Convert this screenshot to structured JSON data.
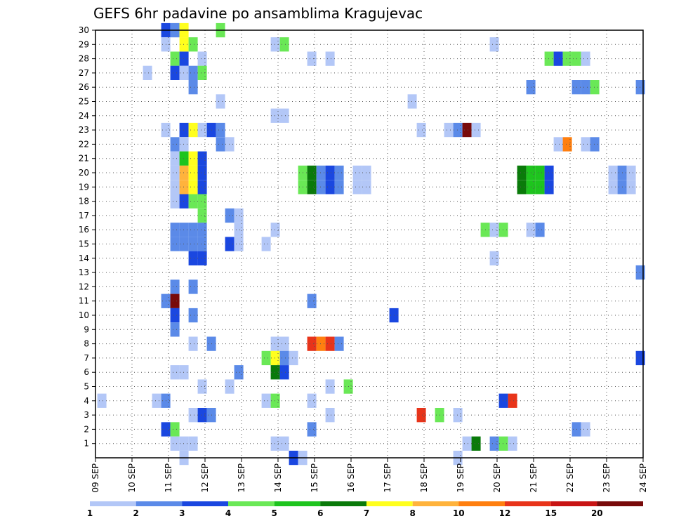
{
  "chart_data": {
    "type": "heatmap",
    "title": "GEFS 6hr padavine po ansamblima Kragujevac",
    "xlabel": "",
    "ylabel": "",
    "x_ticks": [
      "09 SEP",
      "10 SEP",
      "11 SEP",
      "12 SEP",
      "13 SEP",
      "14 SEP",
      "15 SEP",
      "16 SEP",
      "17 SEP",
      "18 SEP",
      "19 SEP",
      "20 SEP",
      "21 SEP",
      "22 SEP",
      "23 SEP",
      "24 SEP"
    ],
    "y_ticks": [
      1,
      2,
      3,
      4,
      5,
      6,
      7,
      8,
      9,
      10,
      11,
      12,
      13,
      14,
      15,
      16,
      17,
      18,
      19,
      20,
      21,
      22,
      23,
      24,
      25,
      26,
      27,
      28,
      29,
      30
    ],
    "xlim": [
      0,
      15
    ],
    "ylim": [
      0,
      30
    ],
    "grid": true,
    "colorbar": {
      "labels": [
        "1",
        "2",
        "3",
        "4",
        "5",
        "6",
        "7",
        "8",
        "10",
        "12",
        "15",
        "20"
      ],
      "colors": [
        "#b3c7f7",
        "#5b8ae8",
        "#1a47e0",
        "#6ae856",
        "#1ec41e",
        "#0a7a0a",
        "#ffff1e",
        "#ffb33c",
        "#ff7f0f",
        "#e8341a",
        "#c81414",
        "#780a0a"
      ]
    },
    "cells_note": "each cell: [member, time_start_days, time_end_days, color_class 1..12]",
    "cells": [
      [
        30,
        1.8,
        2.05,
        3
      ],
      [
        30,
        2.05,
        2.3,
        2
      ],
      [
        30,
        2.3,
        2.55,
        7
      ],
      [
        30,
        3.3,
        3.55,
        4
      ],
      [
        29,
        1.8,
        2.05,
        1
      ],
      [
        29,
        2.3,
        2.55,
        7
      ],
      [
        29,
        2.55,
        2.8,
        4
      ],
      [
        29,
        4.8,
        5.05,
        1
      ],
      [
        29,
        5.05,
        5.3,
        4
      ],
      [
        29,
        10.8,
        11.05,
        1
      ],
      [
        28,
        2.05,
        2.3,
        4
      ],
      [
        28,
        2.3,
        2.55,
        3
      ],
      [
        28,
        2.8,
        3.05,
        1
      ],
      [
        28,
        5.8,
        6.05,
        1
      ],
      [
        28,
        6.3,
        6.55,
        1
      ],
      [
        28,
        12.3,
        12.55,
        4
      ],
      [
        28,
        12.55,
        12.8,
        3
      ],
      [
        28,
        12.8,
        13.05,
        4
      ],
      [
        28,
        13.05,
        13.3,
        4
      ],
      [
        28,
        13.3,
        13.55,
        1
      ],
      [
        27,
        1.3,
        1.55,
        1
      ],
      [
        27,
        2.05,
        2.3,
        3
      ],
      [
        27,
        2.3,
        2.55,
        1
      ],
      [
        27,
        2.55,
        2.8,
        2
      ],
      [
        27,
        2.8,
        3.05,
        4
      ],
      [
        26,
        2.55,
        2.8,
        2
      ],
      [
        26,
        11.8,
        12.05,
        2
      ],
      [
        26,
        13.05,
        13.3,
        2
      ],
      [
        26,
        13.3,
        13.55,
        2
      ],
      [
        26,
        13.55,
        13.8,
        4
      ],
      [
        26,
        14.8,
        15.05,
        2
      ],
      [
        25,
        3.3,
        3.55,
        1
      ],
      [
        25,
        8.55,
        8.8,
        1
      ],
      [
        24,
        4.8,
        5.05,
        1
      ],
      [
        24,
        5.05,
        5.3,
        1
      ],
      [
        23,
        1.8,
        2.05,
        1
      ],
      [
        23,
        2.3,
        2.55,
        3
      ],
      [
        23,
        2.55,
        2.8,
        7
      ],
      [
        23,
        2.8,
        3.05,
        1
      ],
      [
        23,
        3.05,
        3.3,
        3
      ],
      [
        23,
        3.3,
        3.55,
        2
      ],
      [
        23,
        8.8,
        9.05,
        1
      ],
      [
        23,
        9.55,
        9.8,
        1
      ],
      [
        23,
        9.8,
        10.05,
        2
      ],
      [
        23,
        10.05,
        10.3,
        12
      ],
      [
        23,
        10.3,
        10.55,
        1
      ],
      [
        22,
        2.05,
        2.3,
        2
      ],
      [
        22,
        2.3,
        2.55,
        1
      ],
      [
        22,
        3.3,
        3.55,
        2
      ],
      [
        22,
        3.55,
        3.8,
        1
      ],
      [
        22,
        12.55,
        12.8,
        1
      ],
      [
        22,
        12.8,
        13.05,
        9
      ],
      [
        22,
        13.3,
        13.55,
        1
      ],
      [
        22,
        13.55,
        13.8,
        2
      ],
      [
        21,
        2.05,
        2.3,
        1
      ],
      [
        21,
        2.3,
        2.55,
        5
      ],
      [
        21,
        2.55,
        2.8,
        7
      ],
      [
        21,
        2.8,
        3.05,
        3
      ],
      [
        20,
        2.05,
        2.3,
        1
      ],
      [
        20,
        2.3,
        2.55,
        8
      ],
      [
        20,
        2.55,
        2.8,
        7
      ],
      [
        20,
        2.8,
        3.05,
        3
      ],
      [
        20,
        5.55,
        5.8,
        4
      ],
      [
        20,
        5.8,
        6.05,
        6
      ],
      [
        20,
        6.05,
        6.3,
        2
      ],
      [
        20,
        6.3,
        6.55,
        3
      ],
      [
        20,
        6.55,
        6.8,
        2
      ],
      [
        20,
        7.05,
        7.3,
        1
      ],
      [
        20,
        7.3,
        7.55,
        1
      ],
      [
        20,
        11.55,
        11.8,
        6
      ],
      [
        20,
        11.8,
        12.05,
        5
      ],
      [
        20,
        12.05,
        12.3,
        5
      ],
      [
        20,
        12.3,
        12.55,
        3
      ],
      [
        20,
        14.05,
        14.3,
        1
      ],
      [
        20,
        14.3,
        14.55,
        2
      ],
      [
        20,
        14.55,
        14.8,
        1
      ],
      [
        19,
        2.05,
        2.3,
        1
      ],
      [
        19,
        2.3,
        2.55,
        8
      ],
      [
        19,
        2.55,
        2.8,
        7
      ],
      [
        19,
        2.8,
        3.05,
        3
      ],
      [
        19,
        5.55,
        5.8,
        4
      ],
      [
        19,
        5.8,
        6.05,
        6
      ],
      [
        19,
        6.05,
        6.3,
        2
      ],
      [
        19,
        6.3,
        6.55,
        3
      ],
      [
        19,
        6.55,
        6.8,
        2
      ],
      [
        19,
        7.05,
        7.3,
        1
      ],
      [
        19,
        7.3,
        7.55,
        1
      ],
      [
        19,
        11.55,
        11.8,
        6
      ],
      [
        19,
        11.8,
        12.05,
        5
      ],
      [
        19,
        12.05,
        12.3,
        5
      ],
      [
        19,
        12.3,
        12.55,
        3
      ],
      [
        19,
        14.05,
        14.3,
        1
      ],
      [
        19,
        14.3,
        14.55,
        2
      ],
      [
        19,
        14.55,
        14.8,
        1
      ],
      [
        18,
        2.05,
        2.3,
        1
      ],
      [
        18,
        2.3,
        2.55,
        3
      ],
      [
        18,
        2.55,
        2.8,
        4
      ],
      [
        18,
        2.8,
        3.05,
        4
      ],
      [
        17,
        2.8,
        3.05,
        4
      ],
      [
        17,
        3.55,
        3.8,
        2
      ],
      [
        17,
        3.8,
        4.05,
        1
      ],
      [
        16,
        2.05,
        2.3,
        2
      ],
      [
        16,
        2.3,
        2.55,
        2
      ],
      [
        16,
        2.55,
        2.8,
        2
      ],
      [
        16,
        2.8,
        3.05,
        2
      ],
      [
        16,
        3.8,
        4.05,
        1
      ],
      [
        16,
        4.8,
        5.05,
        1
      ],
      [
        16,
        10.55,
        10.8,
        4
      ],
      [
        16,
        10.8,
        11.05,
        1
      ],
      [
        16,
        11.05,
        11.3,
        4
      ],
      [
        16,
        11.8,
        12.05,
        1
      ],
      [
        16,
        12.05,
        12.3,
        2
      ],
      [
        15,
        2.05,
        2.3,
        2
      ],
      [
        15,
        2.3,
        2.55,
        2
      ],
      [
        15,
        2.55,
        2.8,
        2
      ],
      [
        15,
        2.8,
        3.05,
        2
      ],
      [
        15,
        3.55,
        3.8,
        3
      ],
      [
        15,
        3.8,
        4.05,
        1
      ],
      [
        15,
        4.55,
        4.8,
        1
      ],
      [
        14,
        2.55,
        2.8,
        3
      ],
      [
        14,
        2.8,
        3.05,
        3
      ],
      [
        14,
        10.8,
        11.05,
        1
      ],
      [
        13,
        14.8,
        15.05,
        2
      ],
      [
        12,
        2.05,
        2.3,
        2
      ],
      [
        12,
        2.55,
        2.8,
        2
      ],
      [
        11,
        1.8,
        2.05,
        2
      ],
      [
        11,
        2.05,
        2.3,
        12
      ],
      [
        11,
        5.8,
        6.05,
        2
      ],
      [
        10,
        2.05,
        2.3,
        3
      ],
      [
        10,
        2.55,
        2.8,
        2
      ],
      [
        10,
        8.05,
        8.3,
        3
      ],
      [
        9,
        2.05,
        2.3,
        2
      ],
      [
        8,
        2.55,
        2.8,
        1
      ],
      [
        8,
        3.05,
        3.3,
        2
      ],
      [
        8,
        4.8,
        5.05,
        1
      ],
      [
        8,
        5.05,
        5.3,
        1
      ],
      [
        8,
        5.8,
        6.05,
        10
      ],
      [
        8,
        6.05,
        6.3,
        9
      ],
      [
        8,
        6.3,
        6.55,
        10
      ],
      [
        8,
        6.55,
        6.8,
        2
      ],
      [
        7,
        4.55,
        4.8,
        4
      ],
      [
        7,
        4.8,
        5.05,
        7
      ],
      [
        7,
        5.05,
        5.3,
        2
      ],
      [
        7,
        5.3,
        5.55,
        1
      ],
      [
        7,
        14.8,
        15.05,
        3
      ],
      [
        6,
        2.05,
        2.3,
        1
      ],
      [
        6,
        2.3,
        2.55,
        1
      ],
      [
        6,
        3.8,
        4.05,
        2
      ],
      [
        6,
        4.8,
        5.05,
        6
      ],
      [
        6,
        5.05,
        5.3,
        3
      ],
      [
        5,
        2.8,
        3.05,
        1
      ],
      [
        5,
        3.55,
        3.8,
        1
      ],
      [
        5,
        6.3,
        6.55,
        1
      ],
      [
        5,
        6.8,
        7.05,
        4
      ],
      [
        4,
        0.05,
        0.3,
        1
      ],
      [
        4,
        1.55,
        1.8,
        1
      ],
      [
        4,
        1.8,
        2.05,
        2
      ],
      [
        4,
        4.55,
        4.8,
        1
      ],
      [
        4,
        4.8,
        5.05,
        4
      ],
      [
        4,
        5.8,
        6.05,
        1
      ],
      [
        4,
        11.05,
        11.3,
        3
      ],
      [
        4,
        11.3,
        11.55,
        10
      ],
      [
        3,
        2.55,
        2.8,
        1
      ],
      [
        3,
        2.8,
        3.05,
        3
      ],
      [
        3,
        3.05,
        3.3,
        2
      ],
      [
        3,
        6.3,
        6.55,
        1
      ],
      [
        3,
        8.8,
        9.05,
        10
      ],
      [
        3,
        9.3,
        9.55,
        4
      ],
      [
        3,
        9.8,
        10.05,
        1
      ],
      [
        2,
        1.8,
        2.05,
        3
      ],
      [
        2,
        2.05,
        2.3,
        4
      ],
      [
        2,
        5.8,
        6.05,
        2
      ],
      [
        2,
        13.05,
        13.3,
        2
      ],
      [
        2,
        13.3,
        13.55,
        1
      ],
      [
        1,
        2.05,
        2.3,
        1
      ],
      [
        1,
        2.3,
        2.55,
        1
      ],
      [
        1,
        2.55,
        2.8,
        1
      ],
      [
        1,
        4.8,
        5.05,
        1
      ],
      [
        1,
        5.05,
        5.3,
        1
      ],
      [
        1,
        10.05,
        10.3,
        1
      ],
      [
        1,
        10.3,
        10.55,
        6
      ],
      [
        1,
        10.8,
        11.05,
        2
      ],
      [
        1,
        11.05,
        11.3,
        4
      ],
      [
        1,
        11.3,
        11.55,
        1
      ],
      [
        0,
        2.3,
        2.55,
        1
      ],
      [
        0,
        5.3,
        5.55,
        3
      ],
      [
        0,
        5.55,
        5.8,
        1
      ],
      [
        0,
        9.8,
        10.05,
        1
      ]
    ]
  }
}
